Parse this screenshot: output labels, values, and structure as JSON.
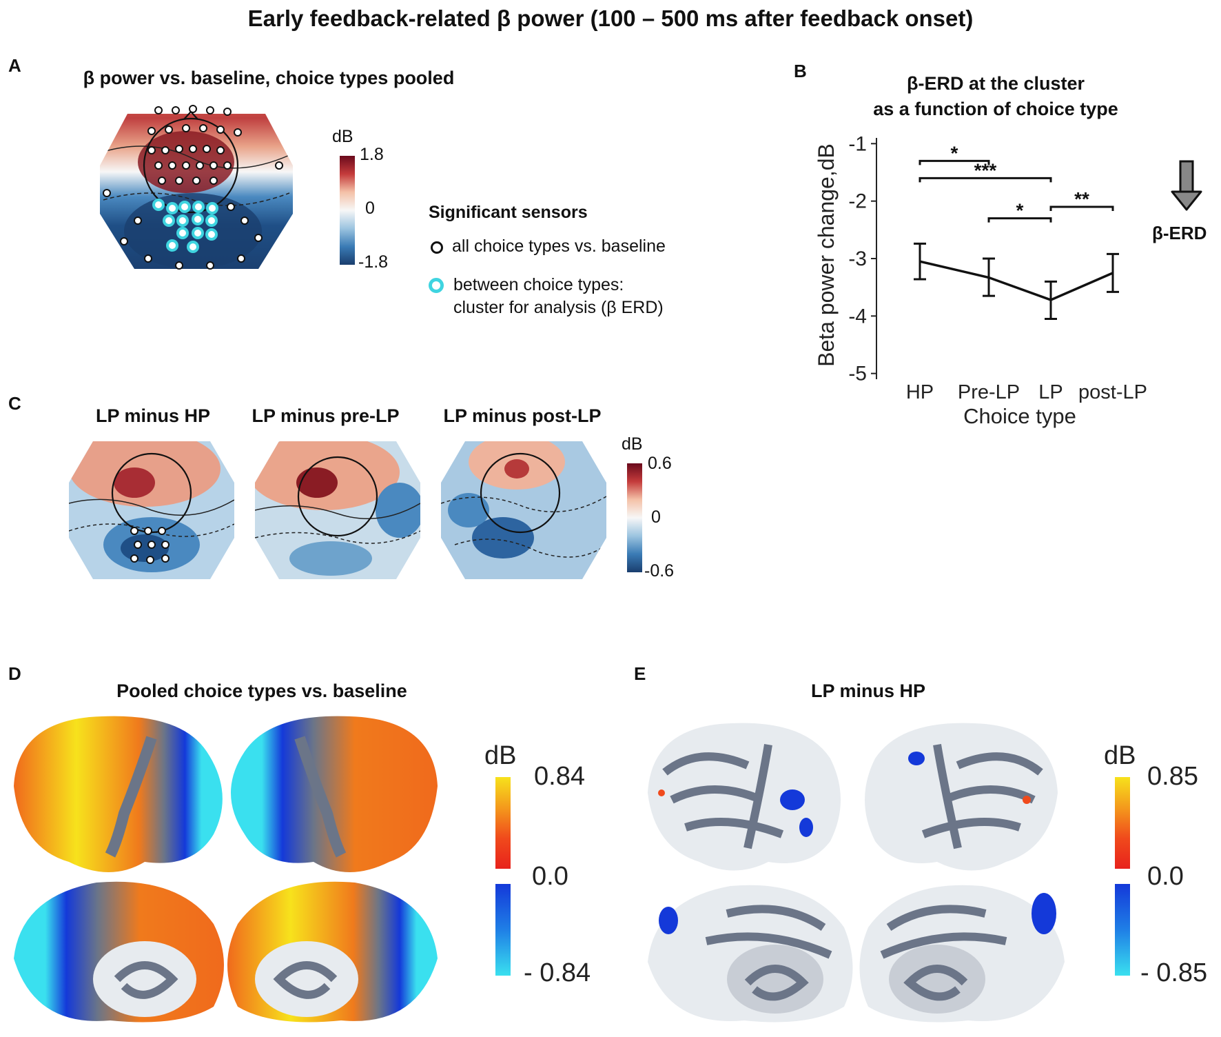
{
  "figure_title": "Early feedback-related β power (100 – 500 ms after feedback onset)",
  "panels": {
    "A": {
      "letter": "A",
      "title": "β power vs. baseline, choice types pooled",
      "colorbar": {
        "unit": "dB",
        "max": "1.8",
        "mid": "0",
        "min": "-1.8"
      },
      "legend": {
        "heading": "Significant sensors",
        "item1": "all choice types vs. baseline",
        "item2_line1": "between choice types:",
        "item2_line2": "cluster for analysis (β ERD)"
      }
    },
    "B": {
      "letter": "B",
      "title_line1": "β-ERD at the cluster",
      "title_line2": "as a function of choice type",
      "arrow_label": "β-ERD"
    },
    "C": {
      "letter": "C",
      "maps": [
        {
          "title": "LP minus HP"
        },
        {
          "title": "LP minus pre-LP"
        },
        {
          "title": "LP minus post-LP"
        }
      ],
      "colorbar": {
        "unit": "dB",
        "max": "0.6",
        "mid": "0",
        "min": "-0.6"
      }
    },
    "D": {
      "letter": "D",
      "title": "Pooled choice types vs. baseline",
      "colorbar": {
        "unit": "dB",
        "max": "0.84",
        "mid": "0.0",
        "min": "- 0.84"
      }
    },
    "E": {
      "letter": "E",
      "title": "LP minus HP",
      "colorbar": {
        "unit": "dB",
        "max": "0.85",
        "mid": "0.0",
        "min": "- 0.85"
      }
    }
  },
  "chart_data": {
    "type": "line",
    "title": "β-ERD at the cluster as a function of choice type",
    "xlabel": "Choice type",
    "ylabel": "Beta power change,dB",
    "categories": [
      "HP",
      "Pre-LP",
      "LP",
      "post-LP"
    ],
    "values": [
      -3.05,
      -3.33,
      -3.72,
      -3.25
    ],
    "error_low": [
      -3.36,
      -3.65,
      -4.05,
      -3.58
    ],
    "error_high": [
      -2.74,
      -3.0,
      -3.4,
      -2.92
    ],
    "ylim": [
      -5.1,
      -0.9
    ],
    "yticks": [
      -1,
      -2,
      -3,
      -4,
      -5
    ],
    "significance": [
      {
        "from": "HP",
        "to": "Pre-LP",
        "label": "*",
        "y": -1.3
      },
      {
        "from": "HP",
        "to": "LP",
        "label": "***",
        "y": -1.6
      },
      {
        "from": "Pre-LP",
        "to": "LP",
        "label": "*",
        "y": -2.3
      },
      {
        "from": "LP",
        "to": "post-LP",
        "label": "**",
        "y": -2.1
      }
    ]
  },
  "colors": {
    "red_dark": "#7a0c1e",
    "red": "#d6604d",
    "red_light": "#f4c1a8",
    "blue_dark": "#1a3e6e",
    "blue": "#4a89c0",
    "blue_light": "#c6dcec",
    "cyan_sensor": "#3fd4e0",
    "brain_gyri": "#e7ebef",
    "brain_sulci": "#6b7588",
    "yellow": "#f7e21c",
    "orange": "#f06a1c",
    "cyan": "#3ae0ef",
    "blue_source": "#1439d9"
  }
}
